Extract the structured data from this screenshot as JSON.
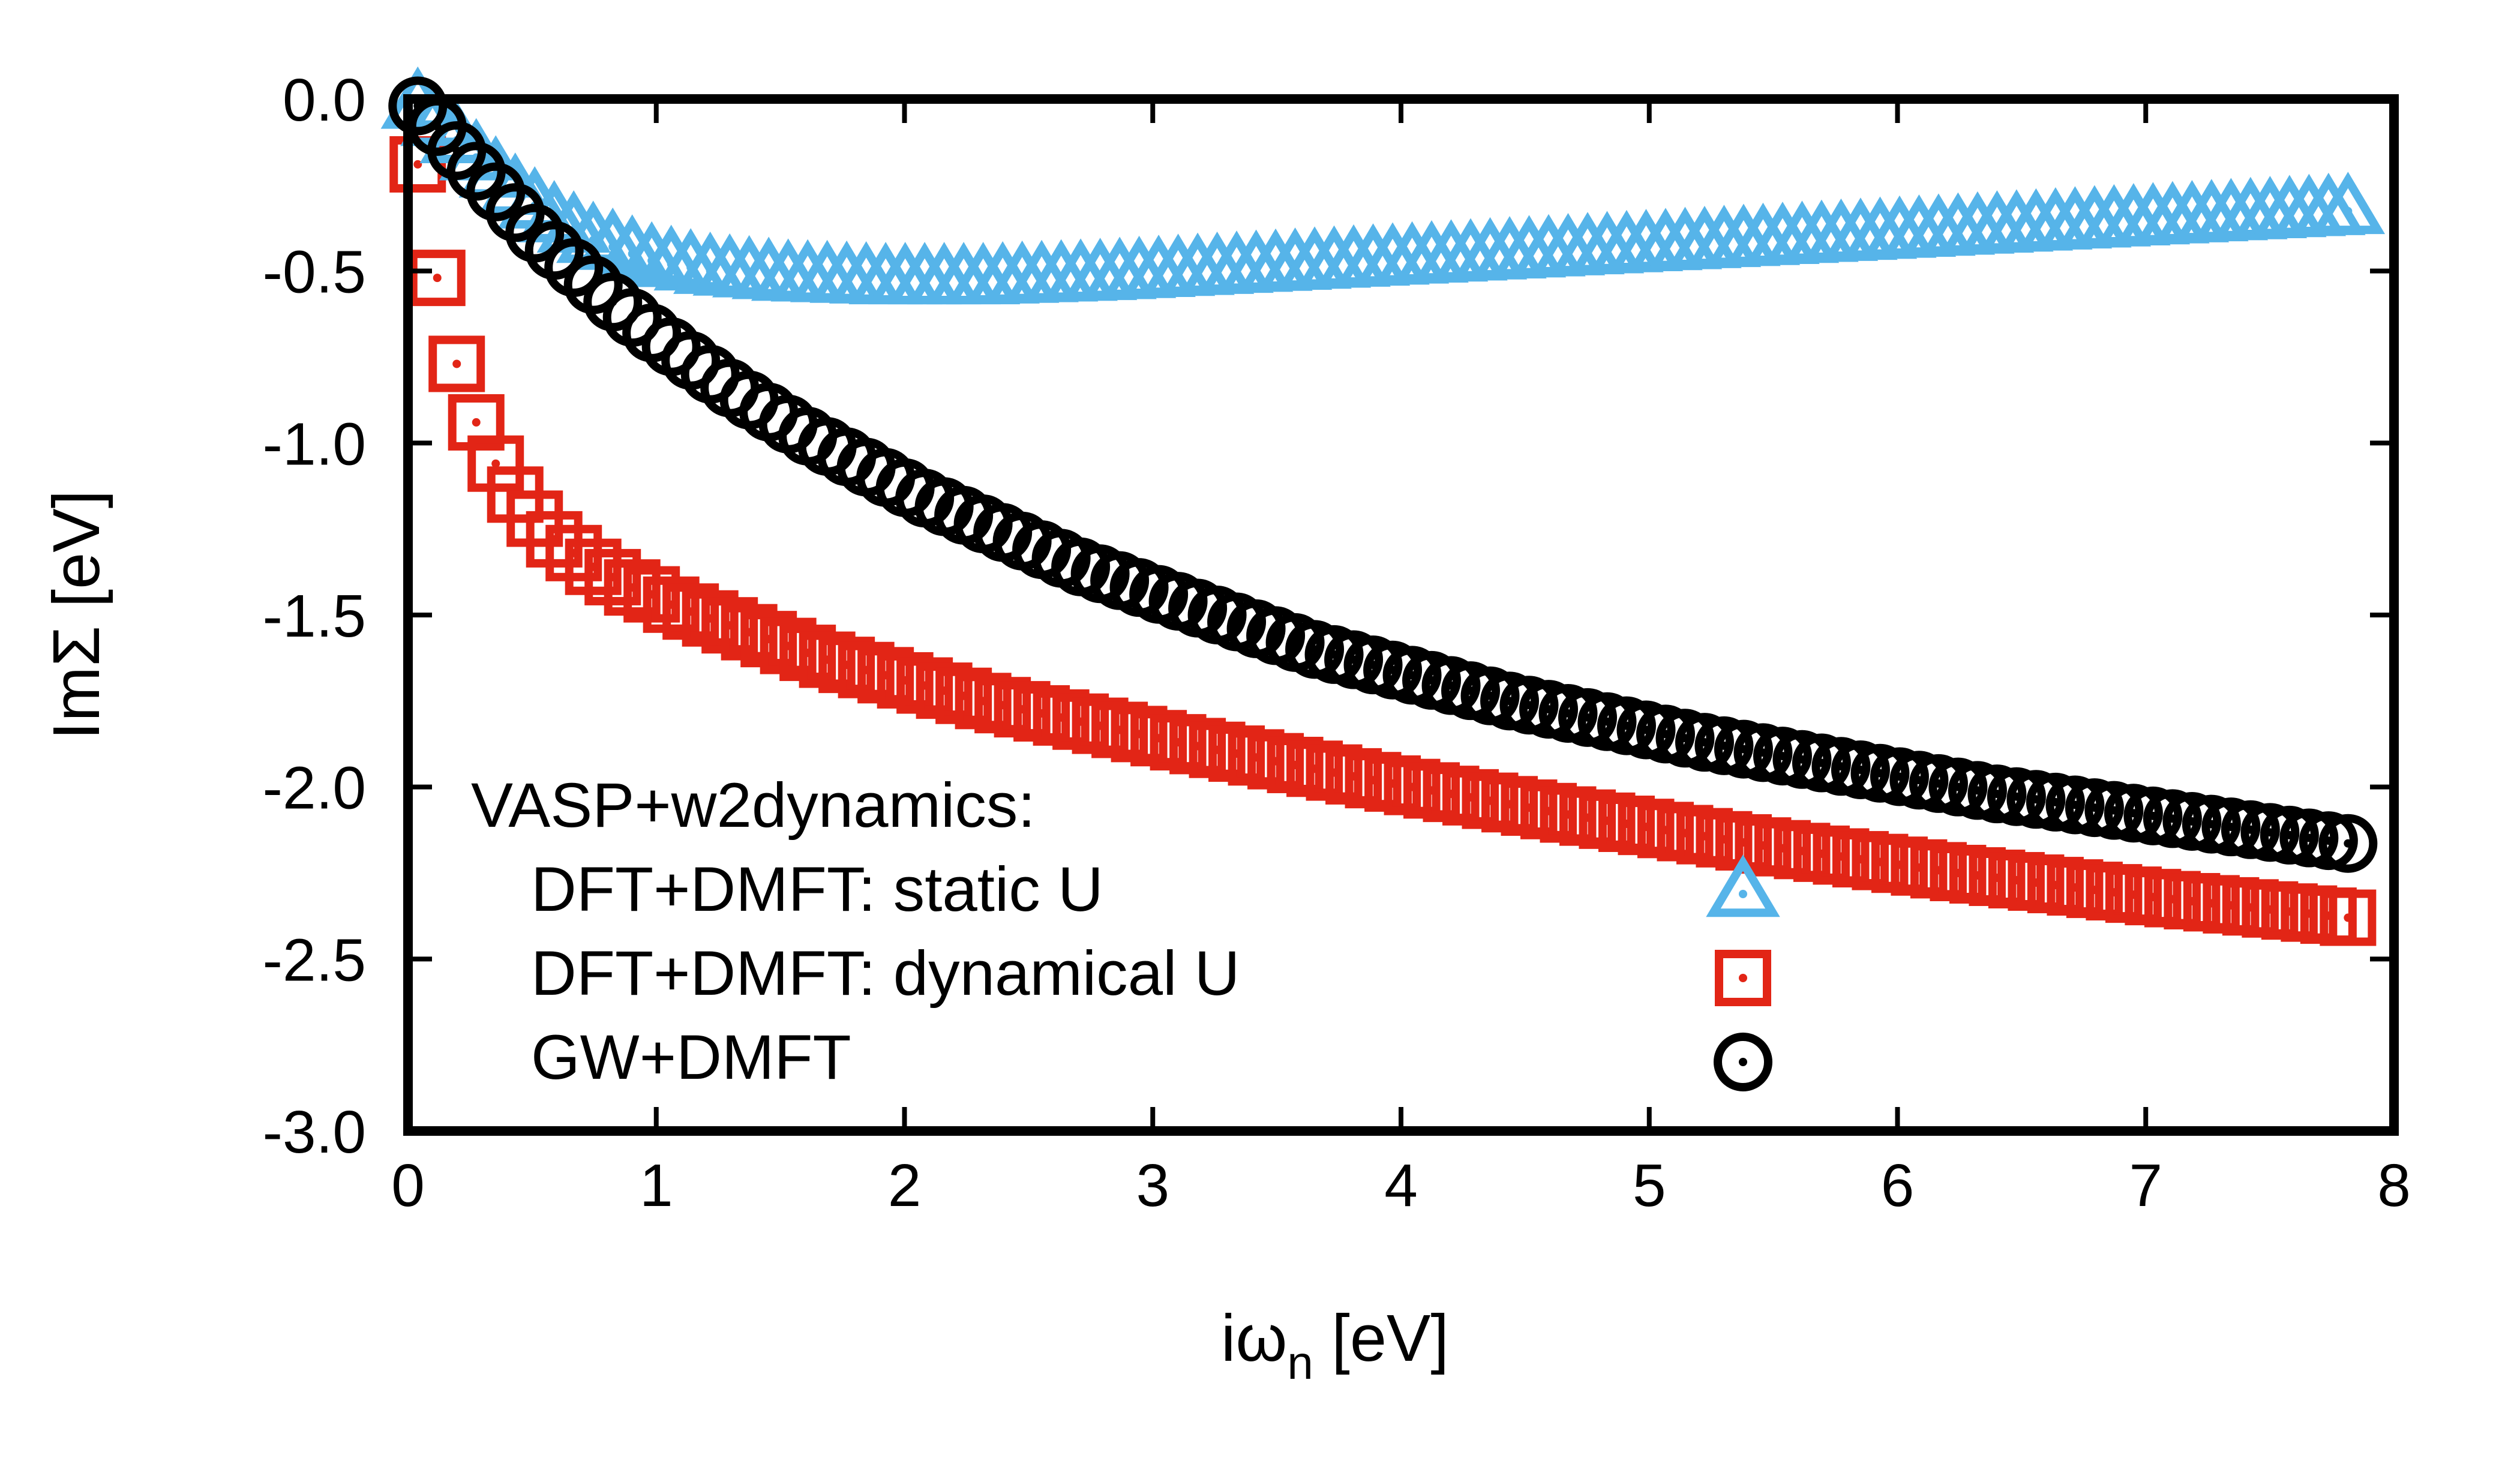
{
  "chart_data": {
    "type": "scatter",
    "xlabel_main": "iω",
    "xlabel_sub": "n",
    "xlabel_unit": " [eV]",
    "ylabel": "ImΣ [eV]",
    "xlim": [
      0,
      8
    ],
    "ylim": [
      -3.0,
      0.0
    ],
    "x_ticks": [
      "0",
      "1",
      "2",
      "3",
      "4",
      "5",
      "6",
      "7",
      "8"
    ],
    "y_ticks": [
      "0.0",
      "-0.5",
      "-1.0",
      "-1.5",
      "-2.0",
      "-2.5",
      "-3.0"
    ],
    "legend": {
      "position": "bottom-left",
      "header": "VASP+w2dynamics:"
    },
    "series": [
      {
        "name": "DFT+DMFT: static U",
        "marker": "triangle",
        "color": "#56b4e9",
        "x": [
          0.0393,
          0.1178,
          0.1963,
          0.2749,
          0.3534,
          0.432,
          0.5105,
          0.589,
          0.6676,
          0.7461,
          0.8247,
          0.9032,
          0.9817,
          1.0603,
          1.1388,
          1.2174,
          1.2959,
          1.3744,
          1.453,
          1.5315,
          1.6101,
          1.6886,
          1.7671,
          1.8457,
          1.9242,
          2.0028,
          2.0813,
          2.1598,
          2.2384,
          2.3169,
          2.3955,
          2.474,
          2.5525,
          2.6311,
          2.7096,
          2.7882,
          2.8667,
          2.9452,
          3.0238,
          3.1023,
          3.1809,
          3.2594,
          3.3379,
          3.4165,
          3.495,
          3.5736,
          3.6521,
          3.7306,
          3.8092,
          3.8877,
          3.9663,
          4.0448,
          4.1233,
          4.2019,
          4.2804,
          4.359,
          4.4375,
          4.516,
          4.5946,
          4.6731,
          4.7517,
          4.8302,
          4.9087,
          4.9873,
          5.0658,
          5.1444,
          5.2229,
          5.3014,
          5.38,
          5.4585,
          5.5371,
          5.6156,
          5.6941,
          5.7727,
          5.8512,
          5.9298,
          6.0083,
          6.0868,
          6.1654,
          6.2439,
          6.3225,
          6.401,
          6.4795,
          6.5581,
          6.6366,
          6.7152,
          6.7937,
          6.8722,
          6.9508,
          7.0293,
          7.1079,
          7.1864,
          7.2649,
          7.3435,
          7.422,
          7.5006,
          7.5791,
          7.6576,
          7.7362,
          7.8147
        ],
        "y": [
          -0.02,
          -0.07,
          -0.12,
          -0.17,
          -0.22,
          -0.27,
          -0.31,
          -0.35,
          -0.38,
          -0.41,
          -0.43,
          -0.45,
          -0.47,
          -0.48,
          -0.49,
          -0.5,
          -0.505,
          -0.51,
          -0.515,
          -0.52,
          -0.522,
          -0.524,
          -0.526,
          -0.528,
          -0.53,
          -0.53,
          -0.53,
          -0.53,
          -0.53,
          -0.53,
          -0.528,
          -0.526,
          -0.524,
          -0.522,
          -0.52,
          -0.518,
          -0.515,
          -0.512,
          -0.509,
          -0.506,
          -0.503,
          -0.5,
          -0.497,
          -0.494,
          -0.491,
          -0.488,
          -0.485,
          -0.482,
          -0.479,
          -0.476,
          -0.473,
          -0.47,
          -0.467,
          -0.464,
          -0.461,
          -0.458,
          -0.455,
          -0.452,
          -0.449,
          -0.446,
          -0.443,
          -0.44,
          -0.437,
          -0.434,
          -0.431,
          -0.428,
          -0.425,
          -0.422,
          -0.419,
          -0.416,
          -0.413,
          -0.41,
          -0.407,
          -0.404,
          -0.401,
          -0.398,
          -0.395,
          -0.392,
          -0.389,
          -0.386,
          -0.383,
          -0.38,
          -0.377,
          -0.374,
          -0.371,
          -0.368,
          -0.365,
          -0.362,
          -0.359,
          -0.356,
          -0.353,
          -0.35,
          -0.347,
          -0.344,
          -0.341,
          -0.338,
          -0.335,
          -0.332,
          -0.329,
          -0.326
        ]
      },
      {
        "name": "DFT+DMFT: dynamical U",
        "marker": "square",
        "color": "#e22516",
        "x": [
          0.0393,
          0.1178,
          0.1963,
          0.2749,
          0.3534,
          0.432,
          0.5105,
          0.589,
          0.6676,
          0.7461,
          0.8247,
          0.9032,
          0.9817,
          1.0603,
          1.1388,
          1.2174,
          1.2959,
          1.3744,
          1.453,
          1.5315,
          1.6101,
          1.6886,
          1.7671,
          1.8457,
          1.9242,
          2.0028,
          2.0813,
          2.1598,
          2.2384,
          2.3169,
          2.3955,
          2.474,
          2.5525,
          2.6311,
          2.7096,
          2.7882,
          2.8667,
          2.9452,
          3.0238,
          3.1023,
          3.1809,
          3.2594,
          3.3379,
          3.4165,
          3.495,
          3.5736,
          3.6521,
          3.7306,
          3.8092,
          3.8877,
          3.9663,
          4.0448,
          4.1233,
          4.2019,
          4.2804,
          4.359,
          4.4375,
          4.516,
          4.5946,
          4.6731,
          4.7517,
          4.8302,
          4.9087,
          4.9873,
          5.0658,
          5.1444,
          5.2229,
          5.3014,
          5.38,
          5.4585,
          5.5371,
          5.6156,
          5.6941,
          5.7727,
          5.8512,
          5.9298,
          6.0083,
          6.0868,
          6.1654,
          6.2439,
          6.3225,
          6.401,
          6.4795,
          6.5581,
          6.6366,
          6.7152,
          6.7937,
          6.8722,
          6.9508,
          7.0293,
          7.1079,
          7.1864,
          7.2649,
          7.3435,
          7.422,
          7.5006,
          7.5791,
          7.6576,
          7.7362,
          7.8147
        ],
        "y": [
          -0.19,
          -0.52,
          -0.77,
          -0.94,
          -1.06,
          -1.15,
          -1.22,
          -1.28,
          -1.32,
          -1.36,
          -1.39,
          -1.42,
          -1.44,
          -1.47,
          -1.49,
          -1.51,
          -1.53,
          -1.55,
          -1.57,
          -1.59,
          -1.61,
          -1.63,
          -1.645,
          -1.66,
          -1.675,
          -1.69,
          -1.705,
          -1.72,
          -1.735,
          -1.75,
          -1.762,
          -1.774,
          -1.786,
          -1.798,
          -1.81,
          -1.822,
          -1.834,
          -1.846,
          -1.858,
          -1.87,
          -1.881,
          -1.892,
          -1.903,
          -1.914,
          -1.925,
          -1.936,
          -1.947,
          -1.958,
          -1.969,
          -1.98,
          -1.99,
          -2.0,
          -2.01,
          -2.02,
          -2.03,
          -2.04,
          -2.05,
          -2.06,
          -2.07,
          -2.08,
          -2.089,
          -2.098,
          -2.107,
          -2.116,
          -2.125,
          -2.134,
          -2.143,
          -2.152,
          -2.161,
          -2.17,
          -2.178,
          -2.186,
          -2.194,
          -2.202,
          -2.21,
          -2.218,
          -2.226,
          -2.234,
          -2.242,
          -2.25,
          -2.257,
          -2.264,
          -2.271,
          -2.278,
          -2.285,
          -2.292,
          -2.299,
          -2.306,
          -2.313,
          -2.32,
          -2.326,
          -2.332,
          -2.338,
          -2.344,
          -2.35,
          -2.356,
          -2.362,
          -2.368,
          -2.374,
          -2.38
        ]
      },
      {
        "name": "GW+DMFT",
        "marker": "circle",
        "color": "#000000",
        "x": [
          0.0393,
          0.1178,
          0.1963,
          0.2749,
          0.3534,
          0.432,
          0.5105,
          0.589,
          0.6676,
          0.7461,
          0.8247,
          0.9032,
          0.9817,
          1.0603,
          1.1388,
          1.2174,
          1.2959,
          1.3744,
          1.453,
          1.5315,
          1.6101,
          1.6886,
          1.7671,
          1.8457,
          1.9242,
          2.0028,
          2.0813,
          2.1598,
          2.2384,
          2.3169,
          2.3955,
          2.474,
          2.5525,
          2.6311,
          2.7096,
          2.7882,
          2.8667,
          2.9452,
          3.0238,
          3.1023,
          3.1809,
          3.2594,
          3.3379,
          3.4165,
          3.495,
          3.5736,
          3.6521,
          3.7306,
          3.8092,
          3.8877,
          3.9663,
          4.0448,
          4.1233,
          4.2019,
          4.2804,
          4.359,
          4.4375,
          4.516,
          4.5946,
          4.6731,
          4.7517,
          4.8302,
          4.9087,
          4.9873,
          5.0658,
          5.1444,
          5.2229,
          5.3014,
          5.38,
          5.4585,
          5.5371,
          5.6156,
          5.6941,
          5.7727,
          5.8512,
          5.9298,
          6.0083,
          6.0868,
          6.1654,
          6.2439,
          6.3225,
          6.401,
          6.4795,
          6.5581,
          6.6366,
          6.7152,
          6.7937,
          6.8722,
          6.9508,
          7.0293,
          7.1079,
          7.1864,
          7.2649,
          7.3435,
          7.422,
          7.5006,
          7.5791,
          7.6576,
          7.7362,
          7.8147
        ],
        "y": [
          -0.02,
          -0.08,
          -0.15,
          -0.21,
          -0.27,
          -0.33,
          -0.39,
          -0.44,
          -0.49,
          -0.54,
          -0.59,
          -0.635,
          -0.68,
          -0.72,
          -0.76,
          -0.8,
          -0.84,
          -0.875,
          -0.91,
          -0.945,
          -0.98,
          -1.01,
          -1.04,
          -1.07,
          -1.1,
          -1.13,
          -1.16,
          -1.185,
          -1.21,
          -1.235,
          -1.26,
          -1.285,
          -1.31,
          -1.335,
          -1.36,
          -1.38,
          -1.4,
          -1.42,
          -1.44,
          -1.46,
          -1.48,
          -1.5,
          -1.52,
          -1.54,
          -1.56,
          -1.58,
          -1.6,
          -1.615,
          -1.63,
          -1.645,
          -1.66,
          -1.675,
          -1.69,
          -1.705,
          -1.72,
          -1.735,
          -1.75,
          -1.762,
          -1.774,
          -1.786,
          -1.798,
          -1.81,
          -1.822,
          -1.834,
          -1.846,
          -1.858,
          -1.87,
          -1.88,
          -1.89,
          -1.9,
          -1.91,
          -1.92,
          -1.93,
          -1.94,
          -1.95,
          -1.96,
          -1.97,
          -1.98,
          -1.99,
          -2.0,
          -2.01,
          -2.02,
          -2.028,
          -2.036,
          -2.044,
          -2.052,
          -2.06,
          -2.068,
          -2.076,
          -2.084,
          -2.092,
          -2.1,
          -2.108,
          -2.116,
          -2.124,
          -2.132,
          -2.14,
          -2.148,
          -2.156,
          -2.164
        ]
      }
    ]
  }
}
